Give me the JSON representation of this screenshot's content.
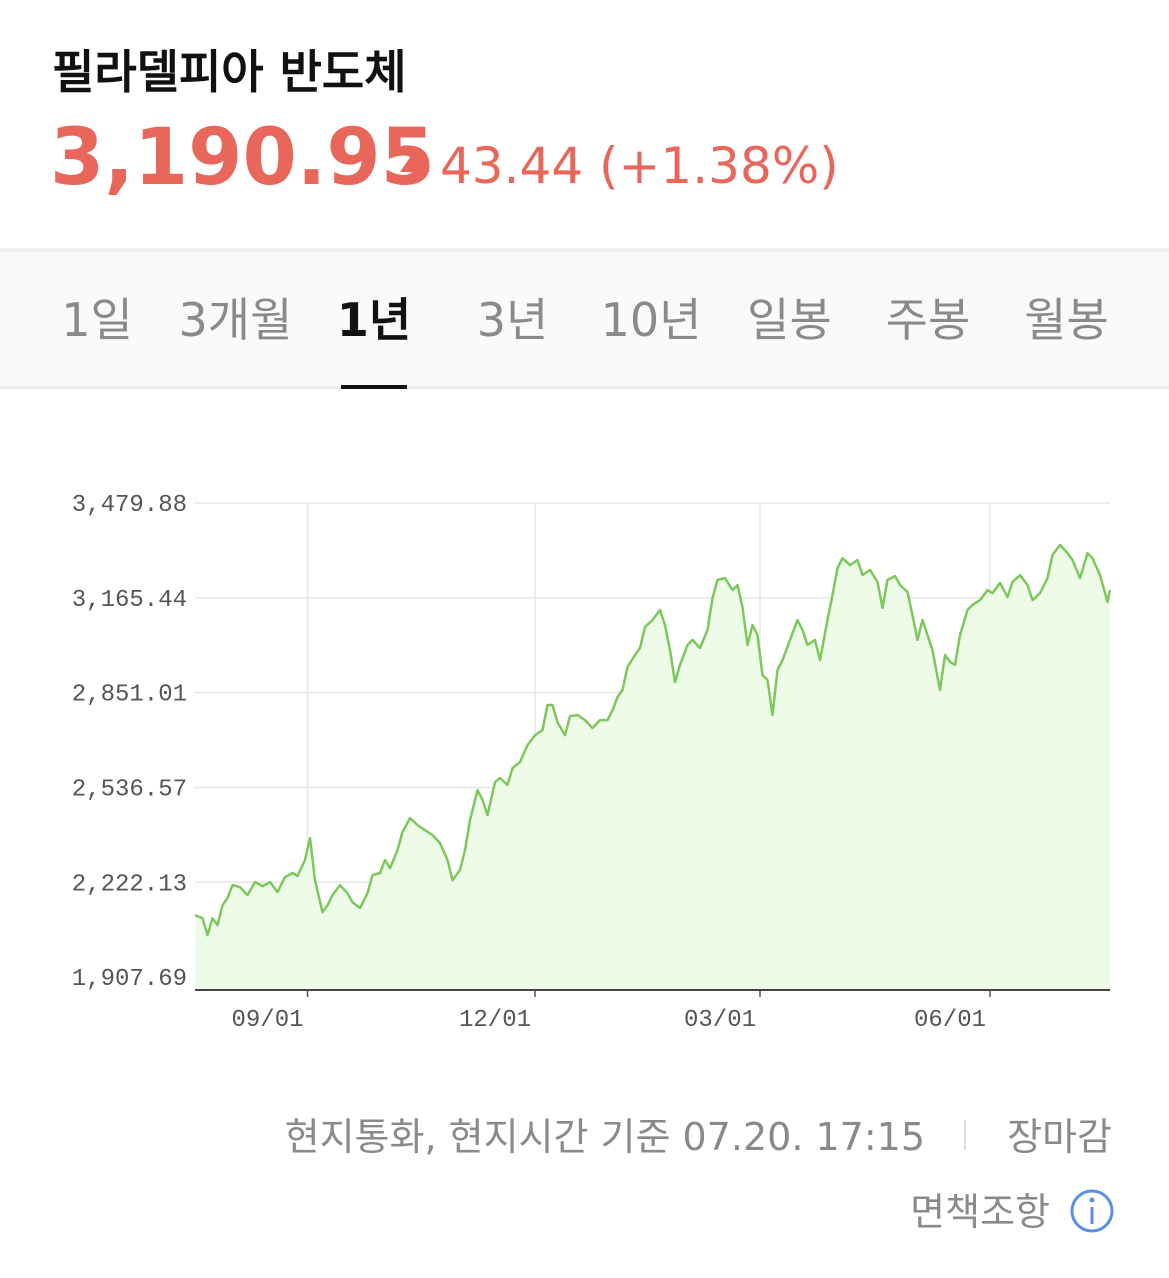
{
  "header": {
    "title": "필라델피아 반도체",
    "price": "3,190.95",
    "change": "43.44 (+1.38%)"
  },
  "tabs": {
    "items": [
      "1일",
      "3개월",
      "1년",
      "3년",
      "10년",
      "일봉",
      "주봉",
      "월봉"
    ],
    "active": 2
  },
  "chart_data": {
    "type": "line",
    "color": "#7cc85a",
    "fill": "#effbe9",
    "grid": true,
    "x": [
      -45,
      -42,
      -40,
      -38,
      -36,
      -34,
      -32,
      -30,
      -27,
      -24,
      -21,
      -18,
      -15,
      -12,
      -9,
      -6,
      -4,
      -1,
      1,
      3,
      6,
      8,
      10,
      13,
      16,
      18,
      21,
      24,
      26,
      29,
      31,
      33,
      36,
      38,
      41,
      44,
      47,
      50,
      53,
      56,
      58,
      61,
      63,
      65,
      68,
      70,
      72,
      75,
      77,
      80,
      82,
      85,
      88,
      91,
      94,
      96,
      98,
      100,
      103,
      105,
      108,
      111,
      114,
      117,
      120,
      122,
      124,
      126,
      128,
      131,
      133,
      135,
      138,
      141,
      143,
      145,
      147,
      149,
      152,
      154,
      157,
      160,
      162,
      164,
      167,
      170,
      172,
      174,
      176,
      178,
      180,
      182,
      184,
      186,
      188,
      190,
      193,
      196,
      198,
      200,
      203,
      205,
      208,
      210,
      212,
      214,
      217,
      220,
      222,
      225,
      228,
      230,
      232,
      235,
      237,
      240,
      242,
      244,
      246,
      248,
      250,
      253,
      255,
      257,
      259,
      261,
      264,
      266,
      269,
      272,
      274,
      277,
      280,
      282,
      285,
      288,
      290,
      293,
      296,
      298,
      301,
      304,
      306,
      309,
      312,
      314,
      317,
      320,
      321
    ],
    "values": [
      2113,
      2103,
      2047,
      2103,
      2080,
      2146,
      2170,
      2213,
      2206,
      2180,
      2223,
      2209,
      2223,
      2190,
      2239,
      2253,
      2243,
      2296,
      2369,
      2229,
      2123,
      2146,
      2180,
      2213,
      2186,
      2156,
      2137,
      2186,
      2246,
      2253,
      2296,
      2269,
      2329,
      2389,
      2435,
      2412,
      2395,
      2379,
      2352,
      2296,
      2229,
      2263,
      2329,
      2428,
      2528,
      2495,
      2445,
      2554,
      2568,
      2545,
      2601,
      2621,
      2677,
      2710,
      2727,
      2810,
      2810,
      2753,
      2710,
      2773,
      2777,
      2760,
      2734,
      2760,
      2760,
      2793,
      2836,
      2860,
      2936,
      2976,
      2999,
      3069,
      3092,
      3125,
      3075,
      2992,
      2886,
      2943,
      3009,
      3026,
      2999,
      3059,
      3165,
      3225,
      3231,
      3191,
      3208,
      3135,
      3009,
      3075,
      3042,
      2909,
      2893,
      2777,
      2926,
      2959,
      3026,
      3092,
      3059,
      3009,
      3026,
      2959,
      3092,
      3175,
      3264,
      3297,
      3274,
      3291,
      3241,
      3258,
      3218,
      3132,
      3225,
      3238,
      3208,
      3185,
      3108,
      3026,
      3092,
      3042,
      2992,
      2860,
      2976,
      2953,
      2943,
      3042,
      3125,
      3142,
      3158,
      3191,
      3181,
      3215,
      3168,
      3218,
      3241,
      3208,
      3158,
      3181,
      3231,
      3308,
      3341,
      3314,
      3291,
      3231,
      3314,
      3297,
      3241,
      3152,
      3191
    ],
    "xlim": [
      -45,
      321
    ],
    "xticks": [
      {
        "value": 0,
        "label": "09/01"
      },
      {
        "value": 91,
        "label": "12/01"
      },
      {
        "value": 181,
        "label": "03/01"
      },
      {
        "value": 273,
        "label": "06/01"
      }
    ],
    "ylim": [
      1865,
      3480
    ],
    "yticks": [
      {
        "value": 1907.69,
        "label": "1,907.69"
      },
      {
        "value": 2222.13,
        "label": "2,222.13"
      },
      {
        "value": 2536.57,
        "label": "2,536.57"
      },
      {
        "value": 2851.01,
        "label": "2,851.01"
      },
      {
        "value": 3165.44,
        "label": "3,165.44"
      },
      {
        "value": 3479.88,
        "label": "3,479.88"
      }
    ]
  },
  "footer": {
    "basis": "현지통화, 현지시간 기준 07.20. 17:15",
    "status": "장마감",
    "disclaimer": "면책조항"
  }
}
